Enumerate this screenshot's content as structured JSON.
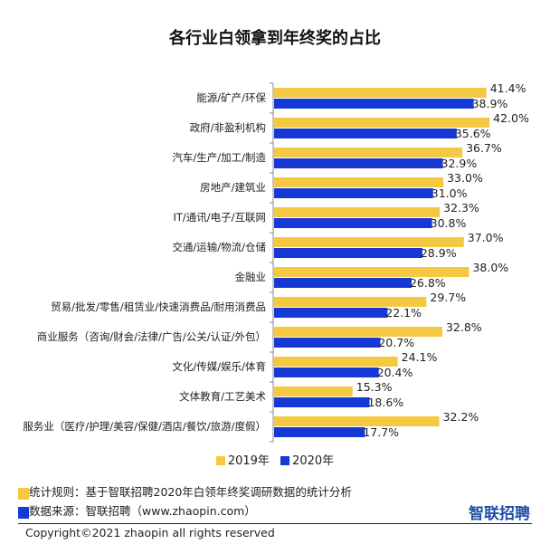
{
  "chart_data": {
    "type": "bar",
    "orientation": "horizontal",
    "title": "各行业白领拿到年终奖的占比",
    "categories": [
      "能源/矿产/环保",
      "政府/非盈利机构",
      "汽车/生产/加工/制造",
      "房地产/建筑业",
      "IT/通讯/电子/互联网",
      "交通/运输/物流/仓储",
      "金融业",
      "贸易/批发/零售/租赁业/快速消费品/耐用消费品",
      "商业服务（咨询/财会/法律/广告/公关/认证/外包）",
      "文化/传媒/娱乐/体育",
      "文体教育/工艺美术",
      "服务业（医疗/护理/美容/保健/酒店/餐饮/旅游/度假）"
    ],
    "series": [
      {
        "name": "2019年",
        "color": "#f5c842",
        "values": [
          41.4,
          42.0,
          36.7,
          33.0,
          32.3,
          37.0,
          38.0,
          29.7,
          32.8,
          24.1,
          15.3,
          32.2
        ],
        "labels": [
          "41.4%",
          "42.0%",
          "36.7%",
          "33.0%",
          "32.3%",
          "37.0%",
          "38.0%",
          "29.7%",
          "32.8%",
          "24.1%",
          "15.3%",
          "32.2%"
        ]
      },
      {
        "name": "2020年",
        "color": "#1638d4",
        "values": [
          38.9,
          35.6,
          32.9,
          31.0,
          30.8,
          28.9,
          26.8,
          22.1,
          20.7,
          20.4,
          18.6,
          17.7
        ],
        "labels": [
          "38.9%",
          "35.6%",
          "32.9%",
          "31.0%",
          "30.8%",
          "28.9%",
          "26.8%",
          "22.1%",
          "20.7%",
          "20.4%",
          "18.6%",
          "17.7%"
        ]
      }
    ],
    "unit": "%",
    "xlim": [
      0,
      50
    ],
    "grid": false,
    "legend_position": "bottom"
  },
  "notes": {
    "rule": "统计规则：基于智联招聘2020年白领年终奖调研数据的统计分析",
    "source": "数据来源：智联招聘（www.zhaopin.com）"
  },
  "logo_text": "智联招聘",
  "copyright": "Copyright©2021 zhaopin all rights reserved"
}
